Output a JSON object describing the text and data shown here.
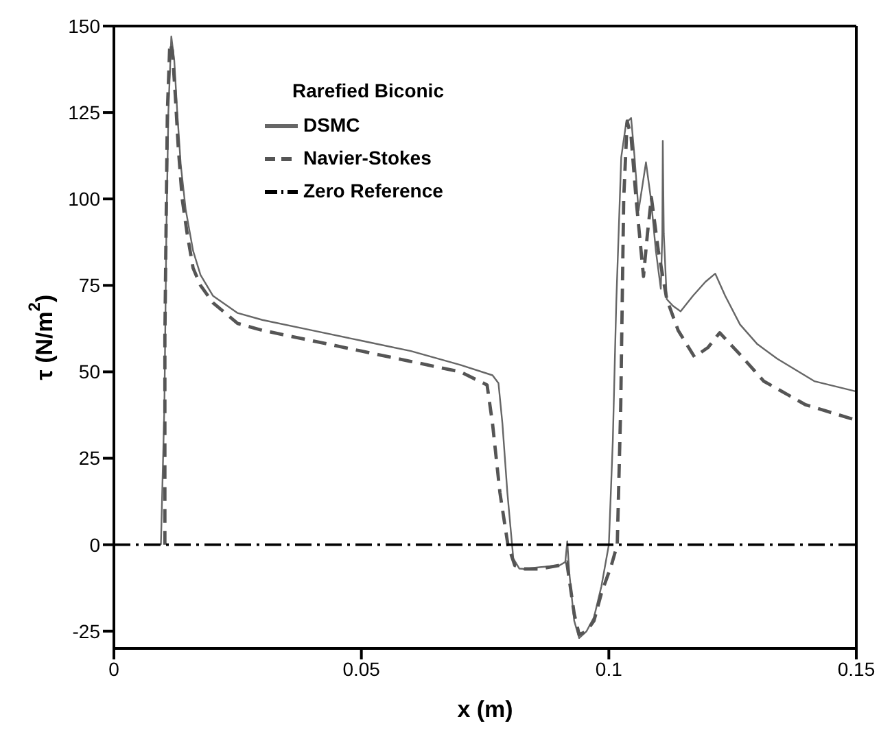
{
  "chart_data": {
    "type": "line",
    "xlabel": "x (m)",
    "ylabel": "τ (N/m$^{2}$)",
    "legend_title": "Rarefied Biconic",
    "legend": "top left",
    "marker": "none",
    "xlim": [
      0,
      0.15
    ],
    "ylim": [
      -30,
      150
    ],
    "xticks": [
      0,
      0.05,
      0.1,
      0.15
    ],
    "yticks": [
      -25,
      0,
      25,
      50,
      75,
      100,
      125,
      150
    ],
    "series": [
      {
        "name": "DSMC",
        "color": "#666666",
        "line_style": "solid",
        "x": [
          0.0095,
          0.0102,
          0.0106,
          0.011,
          0.0116,
          0.0122,
          0.0128,
          0.0135,
          0.0145,
          0.016,
          0.0175,
          0.02,
          0.025,
          0.03,
          0.04,
          0.05,
          0.06,
          0.07,
          0.0765,
          0.0777,
          0.0785,
          0.0795,
          0.0807,
          0.0819,
          0.083,
          0.086,
          0.09,
          0.0912,
          0.0916,
          0.092,
          0.093,
          0.094,
          0.0955,
          0.097,
          0.0985,
          0.1,
          0.1008,
          0.1015,
          0.1025,
          0.1035,
          0.1045,
          0.1052,
          0.106,
          0.1068,
          0.1075,
          0.1085,
          0.1095,
          0.1105,
          0.1108,
          0.1109,
          0.1111,
          0.1117,
          0.113,
          0.1145,
          0.117,
          0.1195,
          0.1215,
          0.1235,
          0.1265,
          0.13,
          0.134,
          0.1415,
          0.15
        ],
        "values": [
          0,
          40,
          90,
          125,
          147,
          140,
          125,
          110,
          97,
          85,
          78,
          72,
          67,
          65,
          62,
          59,
          56,
          52,
          49,
          46.7,
          35,
          15,
          -4,
          -6.9,
          -7,
          -6.5,
          -6,
          -5,
          1,
          -8,
          -22,
          -27,
          -25,
          -21,
          -12,
          0,
          30,
          70,
          112,
          122,
          123.4,
          112,
          96.6,
          104,
          110.6,
          100,
          85,
          74,
          90,
          116.8,
          90,
          71,
          69,
          67.5,
          72,
          76,
          78.4,
          72,
          63.7,
          58,
          53.8,
          47.3,
          44.3
        ]
      },
      {
        "name": "Navier-Stokes",
        "color": "#555555",
        "line_style": "dashed",
        "x": [
          0.0103,
          0.0103,
          0.0108,
          0.0113,
          0.0118,
          0.0124,
          0.013,
          0.0138,
          0.0148,
          0.016,
          0.0175,
          0.02,
          0.025,
          0.03,
          0.04,
          0.05,
          0.06,
          0.07,
          0.0754,
          0.0765,
          0.078,
          0.0796,
          0.081,
          0.083,
          0.086,
          0.09,
          0.0915,
          0.093,
          0.094,
          0.0955,
          0.097,
          0.0985,
          0.1005,
          0.1017,
          0.1024,
          0.103,
          0.1037,
          0.1045,
          0.1055,
          0.107,
          0.1078,
          0.1086,
          0.11,
          0.1117,
          0.114,
          0.1173,
          0.12,
          0.1224,
          0.1265,
          0.1313,
          0.1397,
          0.15
        ],
        "values": [
          0,
          60,
          125,
          145,
          143,
          130,
          115,
          100,
          90,
          80,
          75,
          70,
          64,
          62,
          59,
          56,
          53,
          50,
          46.2,
          35,
          15,
          0,
          -6,
          -7,
          -7,
          -6,
          -5,
          -20,
          -26,
          -25,
          -22,
          -14,
          -6,
          0,
          40,
          100,
          122.5,
          118,
          100,
          77.6,
          90,
          100.4,
          85,
          71,
          62,
          54.3,
          57,
          61.3,
          55,
          47.3,
          40.5,
          36
        ]
      },
      {
        "name": "Zero Reference",
        "color": "#000000",
        "line_style": "dashdot",
        "x": [
          0,
          0.15
        ],
        "values": [
          0,
          0
        ]
      }
    ]
  }
}
